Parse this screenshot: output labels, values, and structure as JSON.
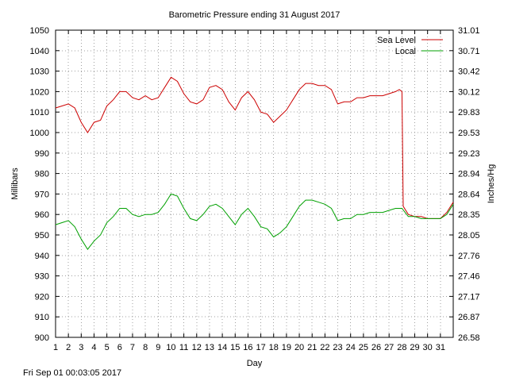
{
  "chart_data": {
    "type": "line",
    "title": "Barometric Pressure ending 31 August 2017",
    "xlabel": "Day",
    "ylabel": "Millibars",
    "y2label": "Inches/Hg",
    "xlim": [
      1,
      32
    ],
    "ylim": [
      900,
      1050
    ],
    "x_ticks": [
      "1",
      "2",
      "3",
      "4",
      "5",
      "6",
      "7",
      "8",
      "9",
      "10",
      "11",
      "12",
      "13",
      "14",
      "15",
      "16",
      "17",
      "18",
      "19",
      "20",
      "21",
      "22",
      "23",
      "24",
      "25",
      "26",
      "27",
      "28",
      "29",
      "30",
      "31"
    ],
    "y_ticks": [
      "900",
      "910",
      "920",
      "930",
      "940",
      "950",
      "960",
      "970",
      "980",
      "990",
      "1000",
      "1010",
      "1020",
      "1030",
      "1040",
      "1050"
    ],
    "y2_ticks": [
      "26.58",
      "26.87",
      "27.17",
      "27.46",
      "27.76",
      "28.05",
      "28.35",
      "28.64",
      "28.94",
      "29.23",
      "29.53",
      "29.83",
      "30.12",
      "30.42",
      "30.71",
      "31.01"
    ],
    "grid": true,
    "legend_position": "top-right",
    "series": [
      {
        "name": "Sea Level",
        "color": "#cc0000",
        "x": [
          1.0,
          1.5,
          2.0,
          2.5,
          3.0,
          3.5,
          4.0,
          4.5,
          5.0,
          5.5,
          6.0,
          6.5,
          7.0,
          7.5,
          8.0,
          8.5,
          9.0,
          9.5,
          10.0,
          10.5,
          11.0,
          11.5,
          12.0,
          12.5,
          13.0,
          13.5,
          14.0,
          14.5,
          15.0,
          15.5,
          16.0,
          16.5,
          17.0,
          17.5,
          18.0,
          18.5,
          19.0,
          19.5,
          20.0,
          20.5,
          21.0,
          21.5,
          22.0,
          22.5,
          23.0,
          23.5,
          24.0,
          24.5,
          25.0,
          25.5,
          26.0,
          26.5,
          27.0,
          27.5,
          27.8,
          28.0,
          28.1,
          28.5,
          29.0,
          29.5,
          30.0,
          30.5,
          31.0,
          31.5,
          32.0
        ],
        "values": [
          1012,
          1013,
          1014,
          1012,
          1005,
          1000,
          1005,
          1006,
          1013,
          1016,
          1020,
          1020,
          1017,
          1016,
          1018,
          1016,
          1017,
          1022,
          1027,
          1025,
          1019,
          1015,
          1014,
          1016,
          1022,
          1023,
          1021,
          1015,
          1011,
          1017,
          1020,
          1016,
          1010,
          1009,
          1005,
          1008,
          1011,
          1016,
          1021,
          1024,
          1024,
          1023,
          1023,
          1021,
          1014,
          1015,
          1015,
          1017,
          1017,
          1018,
          1018,
          1018,
          1019,
          1020,
          1021,
          1020,
          964,
          960,
          959,
          959,
          958,
          958,
          958,
          961,
          966
        ]
      },
      {
        "name": "Local",
        "color": "#00a000",
        "x": [
          1.0,
          1.5,
          2.0,
          2.5,
          3.0,
          3.5,
          4.0,
          4.5,
          5.0,
          5.5,
          6.0,
          6.5,
          7.0,
          7.5,
          8.0,
          8.5,
          9.0,
          9.5,
          10.0,
          10.5,
          11.0,
          11.5,
          12.0,
          12.5,
          13.0,
          13.5,
          14.0,
          14.5,
          15.0,
          15.5,
          16.0,
          16.5,
          17.0,
          17.5,
          18.0,
          18.5,
          19.0,
          19.5,
          20.0,
          20.5,
          21.0,
          21.5,
          22.0,
          22.5,
          23.0,
          23.5,
          24.0,
          24.5,
          25.0,
          25.5,
          26.0,
          26.5,
          27.0,
          27.5,
          28.0,
          28.5,
          29.0,
          29.5,
          30.0,
          30.5,
          31.0,
          31.5,
          32.0
        ],
        "values": [
          955,
          956,
          957,
          954,
          948,
          943,
          947,
          950,
          956,
          959,
          963,
          963,
          960,
          959,
          960,
          960,
          961,
          965,
          970,
          969,
          963,
          958,
          957,
          960,
          964,
          965,
          963,
          959,
          955,
          960,
          963,
          959,
          954,
          953,
          949,
          951,
          954,
          959,
          964,
          967,
          967,
          966,
          965,
          963,
          957,
          958,
          958,
          960,
          960,
          961,
          961,
          961,
          962,
          963,
          963,
          959,
          959,
          958,
          958,
          958,
          958,
          960,
          965
        ]
      }
    ]
  },
  "footer_timestamp": "Fri Sep 01 00:03:05 2017"
}
